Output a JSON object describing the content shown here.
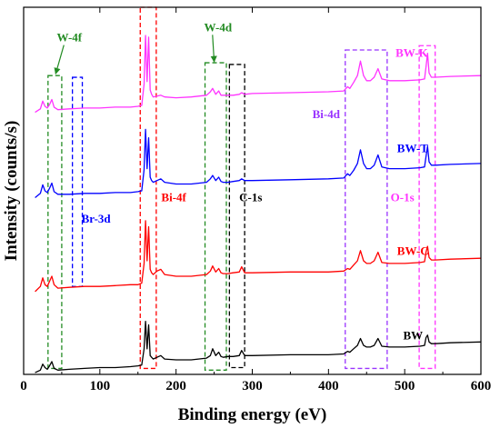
{
  "chart_data": {
    "type": "line",
    "xlabel": "Binding energy (eV)",
    "ylabel": "Intensity (counts/s)",
    "xlim": [
      0,
      600
    ],
    "xticks": [
      "0",
      "100",
      "200",
      "300",
      "400",
      "500",
      "600"
    ],
    "ylim": [
      0,
      4.3
    ],
    "grid": false,
    "series": [
      {
        "name": "BW",
        "color": "#000000",
        "offset": 0,
        "x": [
          15,
          22,
          25,
          28,
          31,
          34,
          37,
          40,
          45,
          60,
          80,
          100,
          120,
          140,
          150,
          155,
          158,
          160,
          162,
          164,
          166,
          168,
          170,
          175,
          180,
          185,
          200,
          220,
          240,
          245,
          248,
          252,
          256,
          259,
          262,
          268,
          275,
          283,
          286,
          290,
          300,
          350,
          400,
          420,
          425,
          428,
          433,
          438,
          442,
          446,
          450,
          455,
          460,
          465,
          470,
          480,
          500,
          520,
          526,
          528,
          530,
          532,
          535,
          540,
          560,
          600
        ],
        "y": [
          0.02,
          0.05,
          0.12,
          0.08,
          0.06,
          0.1,
          0.15,
          0.07,
          0.05,
          0.06,
          0.07,
          0.08,
          0.08,
          0.09,
          0.1,
          0.11,
          0.3,
          0.62,
          0.3,
          0.58,
          0.22,
          0.2,
          0.18,
          0.2,
          0.22,
          0.18,
          0.17,
          0.17,
          0.19,
          0.22,
          0.3,
          0.22,
          0.26,
          0.21,
          0.2,
          0.21,
          0.21,
          0.22,
          0.28,
          0.22,
          0.22,
          0.23,
          0.23,
          0.24,
          0.27,
          0.26,
          0.3,
          0.34,
          0.42,
          0.34,
          0.32,
          0.32,
          0.34,
          0.42,
          0.33,
          0.32,
          0.32,
          0.33,
          0.34,
          0.43,
          0.46,
          0.38,
          0.36,
          0.36,
          0.37,
          0.38
        ]
      },
      {
        "name": "BW-C",
        "color": "#ff0000",
        "offset": 0.95,
        "x": [
          15,
          22,
          25,
          28,
          31,
          34,
          37,
          40,
          45,
          60,
          80,
          100,
          120,
          140,
          150,
          155,
          158,
          160,
          162,
          164,
          166,
          168,
          170,
          175,
          180,
          185,
          200,
          220,
          240,
          245,
          248,
          252,
          256,
          259,
          262,
          268,
          275,
          283,
          286,
          290,
          300,
          350,
          400,
          420,
          425,
          428,
          433,
          438,
          442,
          446,
          450,
          455,
          460,
          465,
          470,
          480,
          500,
          520,
          526,
          528,
          530,
          532,
          535,
          540,
          560,
          600
        ],
        "y": [
          0.02,
          0.08,
          0.18,
          0.1,
          0.08,
          0.14,
          0.2,
          0.1,
          0.06,
          0.07,
          0.08,
          0.08,
          0.09,
          0.1,
          0.1,
          0.12,
          0.35,
          0.85,
          0.38,
          0.78,
          0.28,
          0.24,
          0.22,
          0.26,
          0.28,
          0.22,
          0.2,
          0.2,
          0.22,
          0.26,
          0.32,
          0.25,
          0.29,
          0.24,
          0.23,
          0.23,
          0.24,
          0.25,
          0.31,
          0.24,
          0.24,
          0.25,
          0.25,
          0.26,
          0.29,
          0.28,
          0.33,
          0.38,
          0.5,
          0.38,
          0.35,
          0.35,
          0.38,
          0.48,
          0.36,
          0.35,
          0.35,
          0.36,
          0.37,
          0.48,
          0.55,
          0.42,
          0.39,
          0.39,
          0.4,
          0.41
        ]
      },
      {
        "name": "BW-T",
        "color": "#0000ff",
        "offset": 2.05,
        "x": [
          15,
          22,
          25,
          28,
          31,
          34,
          37,
          40,
          45,
          60,
          80,
          100,
          120,
          140,
          150,
          155,
          158,
          160,
          162,
          164,
          166,
          168,
          170,
          175,
          180,
          185,
          200,
          220,
          240,
          245,
          248,
          252,
          256,
          259,
          262,
          268,
          275,
          283,
          286,
          290,
          300,
          350,
          400,
          420,
          425,
          428,
          433,
          438,
          442,
          446,
          450,
          455,
          460,
          465,
          470,
          480,
          500,
          520,
          526,
          528,
          530,
          532,
          535,
          540,
          560,
          600
        ],
        "y": [
          0.02,
          0.07,
          0.17,
          0.1,
          0.08,
          0.13,
          0.19,
          0.09,
          0.06,
          0.06,
          0.07,
          0.07,
          0.08,
          0.08,
          0.09,
          0.1,
          0.35,
          0.82,
          0.36,
          0.72,
          0.26,
          0.22,
          0.2,
          0.22,
          0.24,
          0.2,
          0.18,
          0.18,
          0.2,
          0.24,
          0.28,
          0.22,
          0.26,
          0.21,
          0.2,
          0.2,
          0.21,
          0.22,
          0.24,
          0.22,
          0.22,
          0.23,
          0.24,
          0.25,
          0.3,
          0.28,
          0.34,
          0.42,
          0.58,
          0.42,
          0.36,
          0.36,
          0.4,
          0.52,
          0.38,
          0.36,
          0.36,
          0.37,
          0.38,
          0.5,
          0.62,
          0.44,
          0.4,
          0.4,
          0.41,
          0.42
        ]
      },
      {
        "name": "BW-K",
        "color": "#ff33ff",
        "offset": 3.05,
        "x": [
          15,
          22,
          25,
          28,
          31,
          34,
          37,
          40,
          45,
          60,
          80,
          100,
          120,
          140,
          150,
          155,
          158,
          160,
          162,
          164,
          166,
          168,
          170,
          175,
          180,
          185,
          200,
          220,
          240,
          245,
          248,
          252,
          256,
          259,
          262,
          268,
          275,
          283,
          286,
          290,
          300,
          350,
          400,
          420,
          425,
          428,
          433,
          438,
          442,
          446,
          450,
          455,
          460,
          465,
          470,
          480,
          500,
          520,
          526,
          528,
          530,
          532,
          535,
          540,
          560,
          600
        ],
        "y": [
          0.02,
          0.06,
          0.15,
          0.09,
          0.07,
          0.11,
          0.17,
          0.08,
          0.05,
          0.06,
          0.07,
          0.07,
          0.08,
          0.08,
          0.09,
          0.1,
          0.35,
          0.92,
          0.38,
          0.9,
          0.28,
          0.23,
          0.2,
          0.21,
          0.22,
          0.2,
          0.19,
          0.2,
          0.22,
          0.26,
          0.3,
          0.23,
          0.27,
          0.22,
          0.22,
          0.22,
          0.22,
          0.23,
          0.25,
          0.23,
          0.24,
          0.25,
          0.26,
          0.27,
          0.32,
          0.3,
          0.37,
          0.45,
          0.62,
          0.45,
          0.39,
          0.39,
          0.43,
          0.53,
          0.41,
          0.39,
          0.39,
          0.4,
          0.41,
          0.55,
          0.71,
          0.48,
          0.43,
          0.43,
          0.44,
          0.45
        ]
      }
    ],
    "series_labels": [
      {
        "text": "BW",
        "x": 498,
        "y": 0.41,
        "color": "#000000"
      },
      {
        "text": "BW-C",
        "x": 490,
        "y": 1.4,
        "color": "#ff0000"
      },
      {
        "text": "BW-T",
        "x": 490,
        "y": 2.6,
        "color": "#0000ff"
      },
      {
        "text": "BW-K",
        "x": 488,
        "y": 3.72,
        "color": "#ff33ff"
      }
    ],
    "regions": [
      {
        "name": "W-4f",
        "color": "#228b22",
        "x0": 32,
        "x1": 50,
        "y0": 0.07,
        "y1": 3.5
      },
      {
        "name": "Br-3d",
        "color": "#0000ff",
        "x0": 64,
        "x1": 77,
        "y0": 1.03,
        "y1": 3.48
      },
      {
        "name": "Bi-4f",
        "color": "#ff0000",
        "x0": 153,
        "x1": 174,
        "y0": 0.07,
        "y1": 4.3
      },
      {
        "name": "W-4d",
        "color": "#228b22",
        "x0": 238,
        "x1": 266,
        "y0": 0.05,
        "y1": 3.65
      },
      {
        "name": "C-1s",
        "color": "#000000",
        "x0": 270,
        "x1": 290,
        "y0": 0.08,
        "y1": 3.63
      },
      {
        "name": "Bi-4d",
        "color": "#9933ff",
        "x0": 422,
        "x1": 477,
        "y0": 0.07,
        "y1": 3.8
      },
      {
        "name": "O-1s",
        "color": "#ff33ff",
        "x0": 519,
        "x1": 540,
        "y0": 0.07,
        "y1": 3.85
      }
    ],
    "annotations": [
      {
        "text": "W-4f",
        "x": 60,
        "y": 3.9,
        "color": "#228b22",
        "arrow_to": [
          42,
          3.52
        ]
      },
      {
        "text": "W-4d",
        "x": 255,
        "y": 4.02,
        "color": "#228b22",
        "arrow_to": [
          250,
          3.66
        ]
      },
      {
        "text": "Br-3d",
        "x": 95,
        "y": 1.78,
        "color": "#0000ff"
      },
      {
        "text": "Bi-4f",
        "x": 197,
        "y": 2.03,
        "color": "#ff0000"
      },
      {
        "text": "C-1s",
        "x": 298,
        "y": 2.03,
        "color": "#000000"
      },
      {
        "text": "Bi-4d",
        "x": 397,
        "y": 3.0,
        "color": "#9933ff"
      },
      {
        "text": "O-1s",
        "x": 497,
        "y": 2.03,
        "color": "#ff33ff"
      }
    ]
  }
}
